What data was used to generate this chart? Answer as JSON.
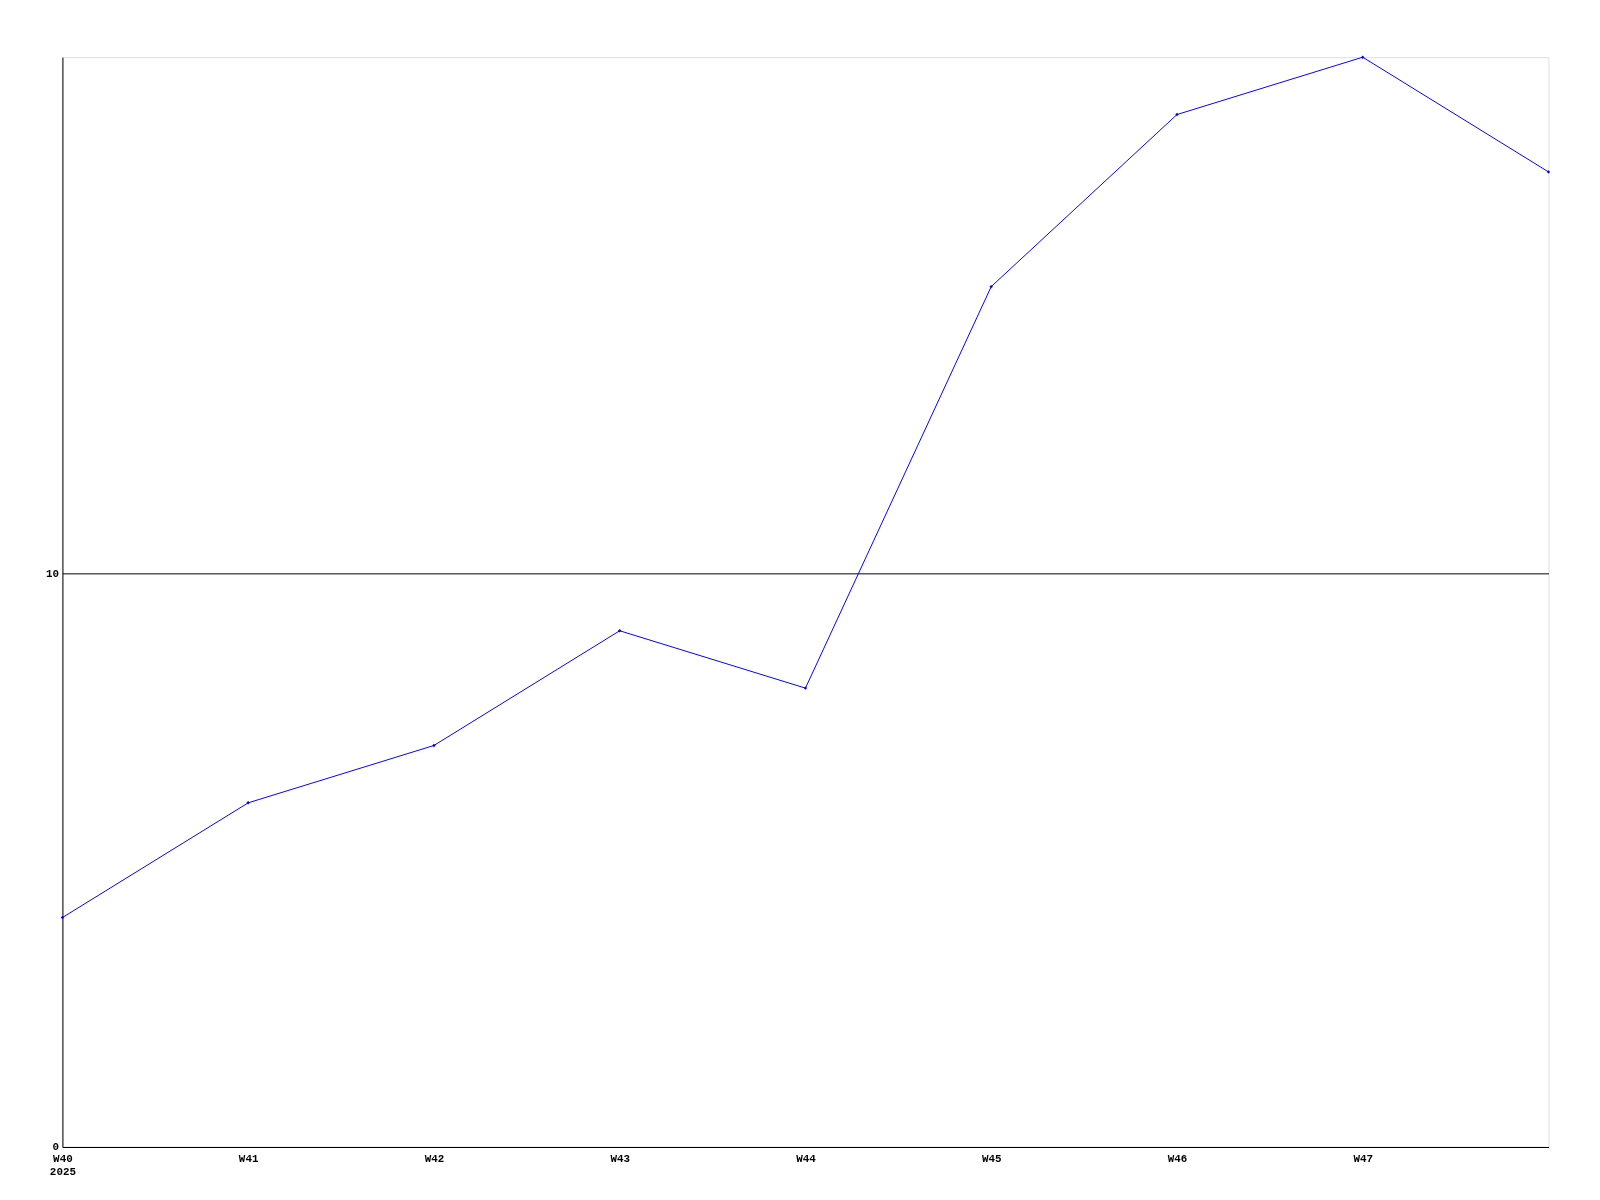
{
  "chart_data": {
    "type": "line",
    "categories": [
      "W40\n2025",
      "W41",
      "W42",
      "W43",
      "W44",
      "W45",
      "W46",
      "W47",
      null
    ],
    "series": [
      {
        "color": "#0000ff",
        "values": [
          4,
          6,
          7,
          9,
          8,
          15,
          18,
          19,
          17
        ]
      }
    ],
    "ylim": [
      0,
      19
    ],
    "yticks": [
      0,
      10
    ],
    "grid": "y",
    "marker": "diamond",
    "line_style": "solid",
    "legend": false
  }
}
